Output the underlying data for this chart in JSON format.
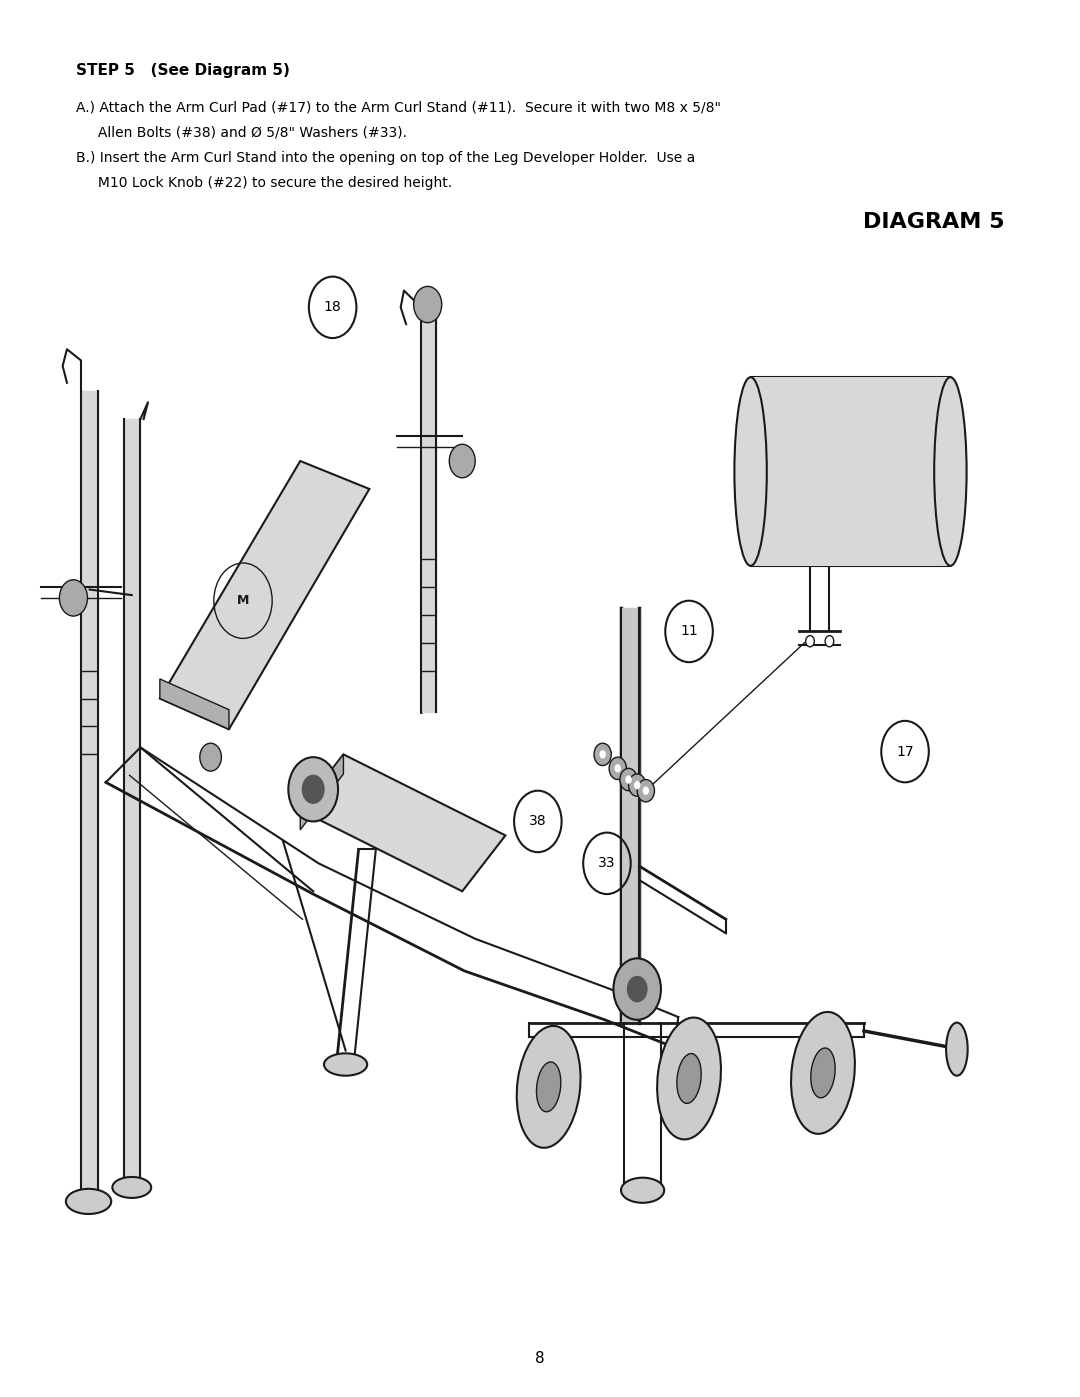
{
  "page_background": "#ffffff",
  "title_step": "STEP 5   (See Diagram 5)",
  "diagram_title": "DIAGRAM 5",
  "page_number": "8",
  "instruction_a_line1": "A.) Attach the Arm Curl Pad (#17) to the Arm Curl Stand (#11).  Secure it with two M8 x 5/8\"",
  "instruction_a_line2": "     Allen Bolts (#38) and Ø 5/8\" Washers (#33).",
  "instruction_b_line1": "B.) Insert the Arm Curl Stand into the opening on top of the Leg Developer Holder.  Use a",
  "instruction_b_line2": "     M10 Lock Knob (#22) to secure the desired height.",
  "text_color": "#000000",
  "line_color": "#1a1a1a"
}
